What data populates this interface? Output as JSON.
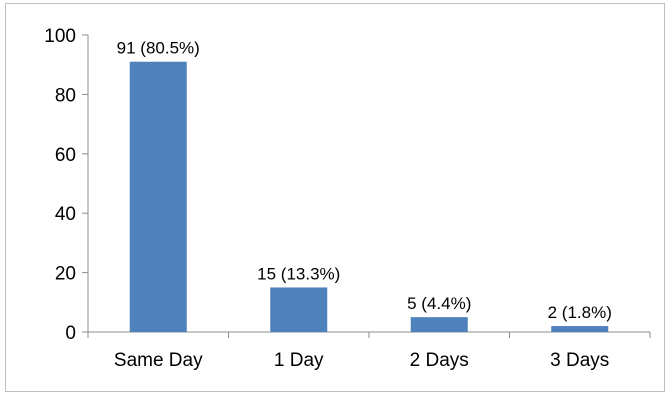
{
  "chart_data": {
    "type": "bar",
    "title": "",
    "xlabel": "",
    "ylabel": "",
    "categories": [
      "Same Day",
      "1 Day",
      "2 Days",
      "3 Days"
    ],
    "values": [
      91,
      15,
      5,
      2
    ],
    "data_labels": [
      "91 (80.5%)",
      "15 (13.3%)",
      "5 (4.4%)",
      "2 (1.8%)"
    ],
    "ylim": [
      0,
      100
    ],
    "yticks": [
      0,
      20,
      40,
      60,
      80,
      100
    ],
    "grid": false,
    "legend": "none",
    "bar_color": "#4f81bd",
    "axis_color": "#8c8c8c"
  }
}
